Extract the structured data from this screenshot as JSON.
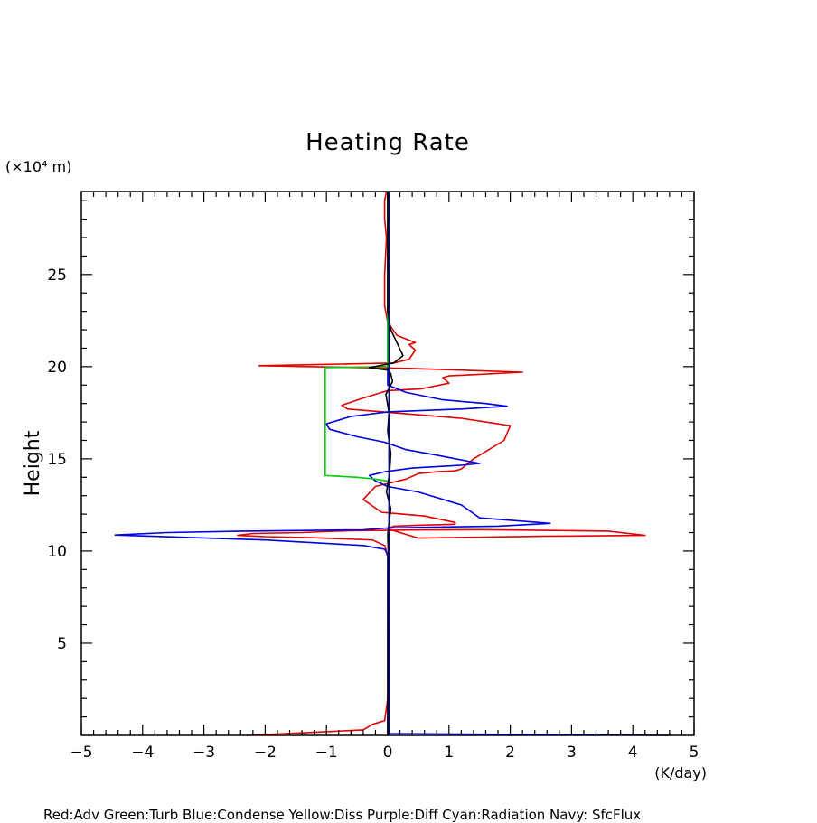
{
  "chart_data": {
    "type": "line",
    "title": "Heating Rate",
    "ylabel": "Height",
    "yunit": "(×10⁴ m)",
    "xunit": "(K/day)",
    "xlim": [
      -5,
      5
    ],
    "ylim": [
      0,
      29.5
    ],
    "xticks": [
      -5,
      -4,
      -3,
      -2,
      -1,
      0,
      1,
      2,
      3,
      4,
      5
    ],
    "yticks": [
      5,
      10,
      15,
      20,
      25
    ],
    "legend_text": "Red:Adv  Green:Turb  Blue:Condense  Yellow:Diss  Purple:Diff  Cyan:Radiation  Navy: SfcFlux",
    "series": [
      {
        "color": "#e00000",
        "x": [
          -2.3,
          -1.0,
          -0.4,
          -0.25,
          -0.05,
          0.0,
          0.0,
          0.0,
          -0.02,
          -0.03,
          -0.05,
          -0.25,
          -1.2,
          -2.0,
          -2.45,
          -2.2,
          -1.4,
          -1.05,
          -0.85,
          -0.6,
          0.0,
          0.3,
          1.5,
          3.6,
          4.2,
          2.5,
          0.5,
          0.0,
          0.1,
          0.5,
          1.1,
          1.1,
          0.6,
          -0.1,
          -0.4,
          -0.2,
          0.3,
          0.5,
          0.8,
          1.1,
          1.2,
          1.4,
          1.9,
          2.0,
          1.2,
          0.1,
          -0.65,
          -0.75,
          -0.4,
          0.0,
          0.55,
          1.0,
          0.9,
          1.0,
          2.2,
          0.4,
          -2.1,
          0.1,
          0.35,
          0.45,
          0.35,
          0.45,
          0.15,
          0.0,
          -0.05,
          -0.05,
          -0.02,
          -0.05,
          -0.05,
          -0.02
        ],
        "y": [
          0.0,
          0.2,
          0.3,
          0.6,
          0.8,
          2.0,
          6.0,
          9.7,
          9.9,
          10.1,
          10.3,
          10.6,
          10.72,
          10.78,
          10.85,
          10.95,
          11.0,
          11.05,
          11.08,
          11.1,
          11.12,
          11.14,
          11.16,
          11.08,
          10.85,
          10.8,
          10.7,
          11.2,
          11.35,
          11.4,
          11.45,
          11.55,
          11.9,
          12.1,
          12.8,
          13.5,
          13.9,
          14.2,
          14.3,
          14.35,
          14.45,
          15.0,
          16.0,
          16.8,
          17.2,
          17.5,
          17.7,
          17.9,
          18.3,
          18.7,
          18.8,
          19.1,
          19.4,
          19.5,
          19.7,
          19.9,
          20.05,
          20.2,
          20.4,
          20.9,
          21.2,
          21.3,
          21.7,
          22.4,
          23.3,
          25.0,
          27.0,
          28.0,
          29.0,
          29.5
        ]
      },
      {
        "color": "#0000e0",
        "x": [
          4.6,
          0.0,
          0.0,
          0.0,
          -0.05,
          -0.4,
          -2.0,
          -4.45,
          -3.6,
          -2.5,
          -0.4,
          0.0,
          1.8,
          2.65,
          1.5,
          1.2,
          0.5,
          0.0,
          -0.2,
          -0.3,
          -0.05,
          0.4,
          1.2,
          1.5,
          0.8,
          0.3,
          -0.05,
          -0.5,
          -0.95,
          -1.0,
          -0.6,
          0.0,
          1.2,
          1.95,
          1.6,
          0.9,
          0.3,
          0.0,
          0.0
        ],
        "y": [
          0.0,
          0.1,
          5.0,
          9.8,
          10.1,
          10.3,
          10.6,
          10.87,
          11.0,
          11.07,
          11.15,
          11.25,
          11.35,
          11.5,
          11.8,
          12.5,
          13.2,
          13.5,
          13.8,
          14.1,
          14.3,
          14.5,
          14.65,
          14.75,
          15.2,
          15.5,
          15.9,
          16.2,
          16.6,
          16.9,
          17.3,
          17.55,
          17.7,
          17.85,
          18.0,
          18.2,
          18.6,
          19.0,
          29.5
        ]
      },
      {
        "color": "#00cc00",
        "x": [
          0.0,
          -0.1,
          -0.2,
          -0.5,
          -1.02,
          -1.02,
          -0.5,
          -0.1,
          0.0,
          0.0
        ],
        "y": [
          13.8,
          13.85,
          13.9,
          14.0,
          14.1,
          19.95,
          19.98,
          20.0,
          20.0,
          29.5
        ]
      },
      {
        "color": "#000000",
        "x": [
          0.0,
          0.01,
          0.0,
          0.02,
          0.05,
          -0.02,
          0.03,
          0.05,
          0.0,
          0.02,
          -0.03,
          0.08,
          0.05,
          0.02,
          -0.3,
          0.1,
          0.25,
          0.15,
          0.05,
          0.0,
          0.0
        ],
        "y": [
          0.0,
          9.7,
          10.9,
          11.5,
          12.3,
          13.2,
          14.2,
          15.3,
          16.5,
          17.5,
          18.5,
          19.2,
          19.6,
          19.8,
          19.95,
          20.2,
          20.6,
          21.3,
          22.0,
          23.0,
          29.5
        ]
      },
      {
        "color": "#000080",
        "x": [
          0.02,
          0.02
        ],
        "y": [
          0.0,
          29.5
        ]
      }
    ]
  }
}
